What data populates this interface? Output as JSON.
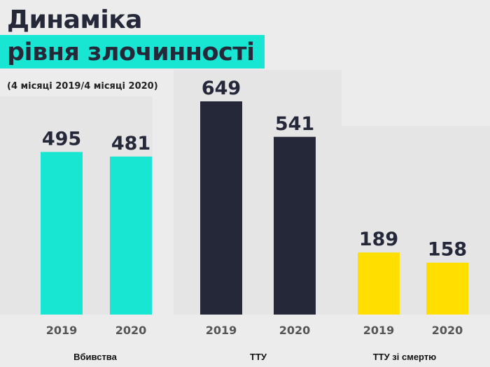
{
  "title": {
    "line1": "Динаміка",
    "line2": "рівня злочинності"
  },
  "subtitle": "(4 місяці 2019/4 місяці 2020)",
  "colors": {
    "accent": "#18e6d2",
    "dark": "#242838",
    "yellow": "#ffde00",
    "background": "#ececec",
    "panel": "#e5e5e5"
  },
  "chart_data": {
    "type": "bar",
    "groups": [
      {
        "name": "Вбивства",
        "color": "#18e6d2",
        "bars": [
          {
            "year": "2019",
            "value": 495
          },
          {
            "year": "2020",
            "value": 481
          }
        ]
      },
      {
        "name": "ТТУ",
        "color": "#242838",
        "bars": [
          {
            "year": "2019",
            "value": 649
          },
          {
            "year": "2020",
            "value": 541
          }
        ]
      },
      {
        "name": "ТТУ зі смертю",
        "color": "#ffde00",
        "bars": [
          {
            "year": "2019",
            "value": 189
          },
          {
            "year": "2020",
            "value": 158
          }
        ]
      }
    ]
  }
}
